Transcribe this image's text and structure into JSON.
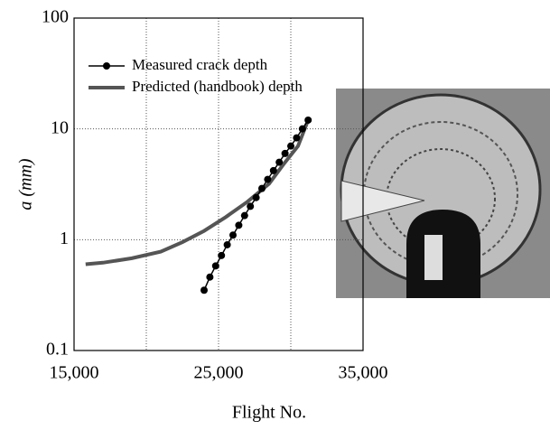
{
  "chart_data": {
    "type": "line",
    "x_label": "Flight No.",
    "y_label": "a (mm)",
    "y_log": true,
    "grid": true,
    "xlim": [
      15000,
      35000
    ],
    "xticks": [
      {
        "value": 15000,
        "label": "15,000"
      },
      {
        "value": 25000,
        "label": "25,000"
      },
      {
        "value": 35000,
        "label": "35,000"
      }
    ],
    "x_minor_ticks": [
      20000,
      30000
    ],
    "ylim": [
      0.1,
      100
    ],
    "yticks": [
      0.1,
      1,
      10,
      100
    ],
    "legend": "upper left",
    "series": [
      {
        "name": "Measured crack depth",
        "color": "#000000",
        "marker": "circle",
        "x": [
          24000,
          24400,
          24800,
          25200,
          25600,
          26000,
          26400,
          26800,
          27200,
          27600,
          28000,
          28400,
          28800,
          29200,
          29600,
          30000,
          30400,
          30800,
          31200
        ],
        "values": [
          0.35,
          0.46,
          0.58,
          0.72,
          0.9,
          1.1,
          1.35,
          1.65,
          2.0,
          2.4,
          2.9,
          3.5,
          4.2,
          5.0,
          6.0,
          7.0,
          8.3,
          10,
          12
        ]
      },
      {
        "name": "Predicted (handbook) depth",
        "color": "#555555",
        "x": [
          15800,
          17000,
          19000,
          21000,
          22500,
          24000,
          25500,
          27000,
          28500,
          29500,
          30500,
          31200
        ],
        "values": [
          0.6,
          0.62,
          0.68,
          0.78,
          0.95,
          1.2,
          1.6,
          2.2,
          3.2,
          4.8,
          7,
          12
        ]
      }
    ]
  }
}
